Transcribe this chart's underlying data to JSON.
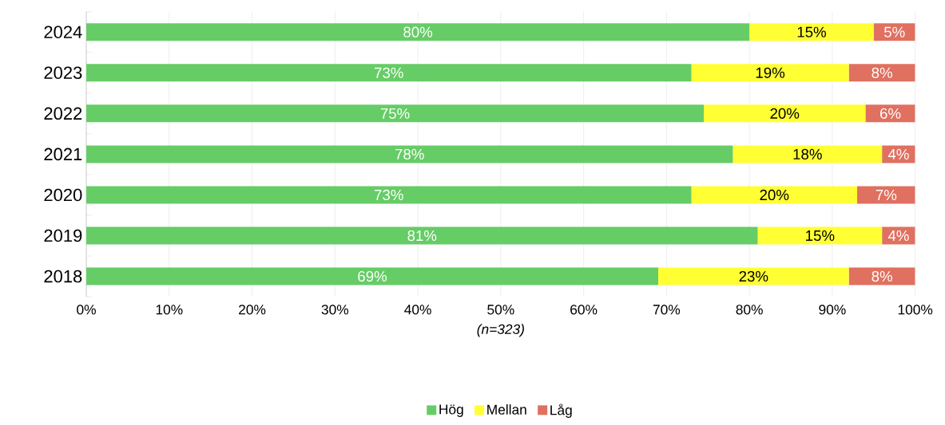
{
  "chart_data": {
    "type": "bar",
    "orientation": "horizontal",
    "stacked": true,
    "categories": [
      "2024",
      "2023",
      "2022",
      "2021",
      "2020",
      "2019",
      "2018"
    ],
    "series": [
      {
        "name": "Hög",
        "color": "#66cc66",
        "values": [
          80,
          73,
          74.5,
          78,
          73,
          81,
          69
        ],
        "value_labels": [
          "80%",
          "73%",
          "75%",
          "78%",
          "73%",
          "81%",
          "69%"
        ]
      },
      {
        "name": "Mellan",
        "color": "#ffff33",
        "values": [
          15,
          19,
          19.5,
          18,
          20,
          15,
          23
        ],
        "value_labels": [
          "15%",
          "19%",
          "20%",
          "18%",
          "20%",
          "15%",
          "23%"
        ]
      },
      {
        "name": "Låg",
        "color": "#e07060",
        "values": [
          5,
          8,
          6,
          4,
          7,
          4,
          8
        ],
        "value_labels": [
          "5%",
          "8%",
          "6%",
          "4%",
          "7%",
          "4%",
          "8%"
        ]
      }
    ],
    "xlim": [
      0,
      100
    ],
    "xticks": [
      {
        "value": 0,
        "label": "0%"
      },
      {
        "value": 10,
        "label": "10%"
      },
      {
        "value": 20,
        "label": "20%"
      },
      {
        "value": 30,
        "label": "30%"
      },
      {
        "value": 40,
        "label": "40%"
      },
      {
        "value": 50,
        "label": "50%"
      },
      {
        "value": 60,
        "label": "60%"
      },
      {
        "value": 70,
        "label": "70%"
      },
      {
        "value": 80,
        "label": "80%"
      },
      {
        "value": 90,
        "label": "90%"
      },
      {
        "value": 100,
        "label": "100%"
      }
    ],
    "xlabel": "*(n=323)*",
    "grid": "x",
    "legend": "bottom"
  }
}
